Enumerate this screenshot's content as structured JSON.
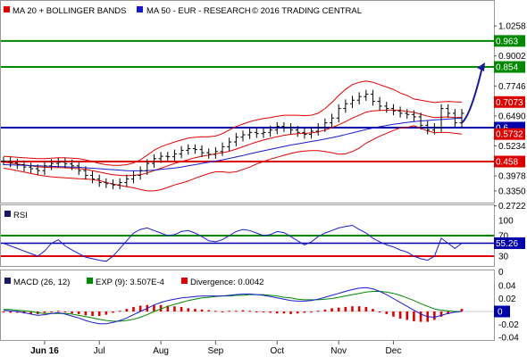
{
  "header": {
    "legend_bollinger": "MA 20 + BOLLINGER BANDS",
    "legend_ma50": "MA 50 - EUR - RESEARCH",
    "copyright": "© 2016 TRADING CENTRAL"
  },
  "rsi_panel": {
    "title": "RSI"
  },
  "macd_panel": {
    "macd_label": "MACD (26, 12)",
    "exp_label": "EXP (9): 3.507E-4",
    "divergence_label": "Divergence: 0.0042"
  },
  "colors": {
    "price_bar": "#000000",
    "bollinger": "#e00000",
    "ma50": "#1a1acc",
    "support_line": "#0000aa",
    "resistance_line": "#008800",
    "stop_line": "#dd0000",
    "rsi_line": "#1a1acc",
    "macd_line": "#1a1acc",
    "exp_line": "#008800",
    "divergence_bar": "#dd0000",
    "arrow": "#1a1a99"
  },
  "chart_data": [
    {
      "type": "candlestick",
      "name": "price",
      "x_categories": [
        "Jun 16",
        "Jul",
        "Aug",
        "Sep",
        "Oct",
        "Nov",
        "Dec"
      ],
      "y_ticks": [
        "1.0258",
        "0.9002",
        "0.7746",
        "0.6490",
        "0.5234",
        "0.3978",
        "0.3350",
        "0.2722"
      ],
      "ylim": [
        0.2722,
        1.0886
      ],
      "levels": [
        {
          "label": "0.963",
          "value": 0.963,
          "role": "resistance"
        },
        {
          "label": "0.854",
          "value": 0.854,
          "role": "resistance"
        },
        {
          "label": "0.6",
          "value": 0.6,
          "role": "pivot"
        },
        {
          "label": "0.458",
          "value": 0.458,
          "role": "support"
        }
      ],
      "badges": [
        {
          "label": "0.7073",
          "value": 0.7073,
          "role": "bollinger_upper"
        },
        {
          "label": "0.5732",
          "value": 0.5732,
          "role": "bollinger_lower"
        }
      ],
      "trend_arrow": {
        "from": 0.62,
        "to": 0.854
      },
      "close_series": [
        0.46,
        0.452,
        0.445,
        0.435,
        0.428,
        0.42,
        0.44,
        0.45,
        0.455,
        0.448,
        0.44,
        0.42,
        0.4,
        0.385,
        0.37,
        0.365,
        0.36,
        0.37,
        0.385,
        0.4,
        0.42,
        0.45,
        0.47,
        0.48,
        0.478,
        0.49,
        0.505,
        0.512,
        0.508,
        0.495,
        0.488,
        0.5,
        0.52,
        0.54,
        0.56,
        0.57,
        0.58,
        0.575,
        0.58,
        0.59,
        0.605,
        0.6,
        0.59,
        0.58,
        0.572,
        0.585,
        0.6,
        0.62,
        0.64,
        0.68,
        0.7,
        0.715,
        0.73,
        0.74,
        0.71,
        0.69,
        0.68,
        0.67,
        0.66,
        0.655,
        0.645,
        0.61,
        0.59,
        0.6,
        0.68,
        0.66,
        0.62,
        0.66
      ],
      "bollinger_mid": [
        0.455,
        0.452,
        0.448,
        0.444,
        0.44,
        0.436,
        0.434,
        0.433,
        0.433,
        0.432,
        0.43,
        0.428,
        0.425,
        0.42,
        0.414,
        0.408,
        0.403,
        0.4,
        0.399,
        0.4,
        0.403,
        0.41,
        0.42,
        0.43,
        0.44,
        0.45,
        0.458,
        0.466,
        0.474,
        0.48,
        0.485,
        0.49,
        0.495,
        0.501,
        0.51,
        0.52,
        0.53,
        0.54,
        0.548,
        0.555,
        0.562,
        0.568,
        0.572,
        0.575,
        0.576,
        0.578,
        0.582,
        0.59,
        0.6,
        0.612,
        0.625,
        0.64,
        0.652,
        0.665,
        0.67,
        0.672,
        0.673,
        0.674,
        0.672,
        0.668,
        0.664,
        0.656,
        0.648,
        0.642,
        0.644,
        0.645,
        0.642,
        0.643
      ],
      "bollinger_upper": [
        0.48,
        0.478,
        0.476,
        0.474,
        0.472,
        0.47,
        0.47,
        0.472,
        0.474,
        0.474,
        0.472,
        0.47,
        0.465,
        0.458,
        0.45,
        0.445,
        0.442,
        0.442,
        0.445,
        0.452,
        0.465,
        0.485,
        0.505,
        0.52,
        0.53,
        0.54,
        0.548,
        0.556,
        0.56,
        0.562,
        0.562,
        0.565,
        0.575,
        0.59,
        0.605,
        0.615,
        0.625,
        0.632,
        0.638,
        0.642,
        0.648,
        0.652,
        0.652,
        0.652,
        0.65,
        0.652,
        0.66,
        0.68,
        0.705,
        0.735,
        0.76,
        0.78,
        0.79,
        0.795,
        0.79,
        0.78,
        0.77,
        0.76,
        0.745,
        0.735,
        0.72,
        0.715,
        0.71,
        0.705,
        0.708,
        0.71,
        0.708,
        0.707
      ],
      "bollinger_lower": [
        0.43,
        0.426,
        0.42,
        0.414,
        0.408,
        0.402,
        0.398,
        0.394,
        0.392,
        0.39,
        0.388,
        0.386,
        0.385,
        0.382,
        0.378,
        0.371,
        0.364,
        0.358,
        0.353,
        0.348,
        0.341,
        0.335,
        0.335,
        0.34,
        0.35,
        0.36,
        0.368,
        0.376,
        0.388,
        0.398,
        0.408,
        0.415,
        0.415,
        0.412,
        0.415,
        0.425,
        0.435,
        0.448,
        0.458,
        0.468,
        0.476,
        0.484,
        0.492,
        0.498,
        0.502,
        0.504,
        0.504,
        0.5,
        0.495,
        0.489,
        0.49,
        0.5,
        0.514,
        0.535,
        0.55,
        0.564,
        0.576,
        0.588,
        0.599,
        0.601,
        0.608,
        0.597,
        0.586,
        0.579,
        0.58,
        0.58,
        0.576,
        0.573
      ],
      "ma50": [
        0.445,
        0.444,
        0.443,
        0.442,
        0.441,
        0.44,
        0.439,
        0.438,
        0.437,
        0.436,
        0.435,
        0.434,
        0.432,
        0.43,
        0.428,
        0.426,
        0.424,
        0.422,
        0.42,
        0.419,
        0.419,
        0.42,
        0.422,
        0.425,
        0.428,
        0.431,
        0.435,
        0.44,
        0.445,
        0.45,
        0.455,
        0.46,
        0.465,
        0.471,
        0.477,
        0.483,
        0.49,
        0.497,
        0.503,
        0.509,
        0.515,
        0.521,
        0.527,
        0.532,
        0.537,
        0.542,
        0.547,
        0.552,
        0.558,
        0.564,
        0.571,
        0.578,
        0.585,
        0.592,
        0.598,
        0.604,
        0.609,
        0.614,
        0.618,
        0.622,
        0.625,
        0.628,
        0.63,
        0.632,
        0.634,
        0.636,
        0.638,
        0.64
      ]
    },
    {
      "type": "line",
      "name": "RSI",
      "y_ticks": [
        "100",
        "70",
        "30",
        "0"
      ],
      "ylim": [
        0,
        100
      ],
      "current_label": "55.26",
      "levels": [
        70,
        30
      ],
      "values": [
        55,
        50,
        45,
        40,
        35,
        30,
        40,
        55,
        62,
        50,
        42,
        35,
        28,
        25,
        22,
        20,
        30,
        45,
        60,
        75,
        82,
        85,
        80,
        75,
        70,
        72,
        78,
        80,
        75,
        68,
        60,
        58,
        62,
        70,
        78,
        82,
        80,
        75,
        70,
        72,
        78,
        76,
        68,
        60,
        52,
        58,
        68,
        75,
        80,
        85,
        88,
        90,
        82,
        75,
        65,
        58,
        52,
        48,
        42,
        38,
        30,
        25,
        22,
        30,
        65,
        55,
        45,
        55
      ]
    },
    {
      "type": "bar+line",
      "name": "MACD",
      "y_ticks": [
        "0.04",
        "0.02",
        "0",
        "-0.02",
        "-0.04"
      ],
      "ylim": [
        -0.04,
        0.04
      ],
      "current_label": "0",
      "macd": [
        0.002,
        0.001,
        0.0,
        -0.002,
        -0.004,
        -0.006,
        -0.005,
        -0.003,
        -0.002,
        -0.004,
        -0.007,
        -0.01,
        -0.014,
        -0.017,
        -0.019,
        -0.019,
        -0.017,
        -0.014,
        -0.01,
        -0.005,
        0.0,
        0.005,
        0.01,
        0.014,
        0.017,
        0.019,
        0.021,
        0.022,
        0.023,
        0.024,
        0.024,
        0.024,
        0.024,
        0.025,
        0.026,
        0.027,
        0.027,
        0.026,
        0.025,
        0.023,
        0.021,
        0.019,
        0.017,
        0.016,
        0.016,
        0.017,
        0.019,
        0.022,
        0.025,
        0.028,
        0.031,
        0.034,
        0.036,
        0.037,
        0.035,
        0.031,
        0.026,
        0.02,
        0.014,
        0.008,
        0.002,
        -0.004,
        -0.008,
        -0.009,
        -0.006,
        -0.003,
        -0.001,
        0.0
      ],
      "signal": [
        0.003,
        0.003,
        0.002,
        0.001,
        0.0,
        -0.002,
        -0.003,
        -0.003,
        -0.003,
        -0.003,
        -0.004,
        -0.006,
        -0.008,
        -0.01,
        -0.012,
        -0.014,
        -0.015,
        -0.015,
        -0.014,
        -0.012,
        -0.009,
        -0.005,
        0.0,
        0.004,
        0.008,
        0.011,
        0.014,
        0.017,
        0.019,
        0.021,
        0.022,
        0.023,
        0.024,
        0.024,
        0.025,
        0.025,
        0.026,
        0.026,
        0.026,
        0.025,
        0.024,
        0.022,
        0.021,
        0.019,
        0.018,
        0.018,
        0.018,
        0.019,
        0.02,
        0.022,
        0.024,
        0.026,
        0.028,
        0.03,
        0.031,
        0.031,
        0.03,
        0.028,
        0.025,
        0.021,
        0.017,
        0.012,
        0.008,
        0.004,
        0.002,
        0.001,
        0.0,
        0.0
      ],
      "divergence": [
        -0.001,
        -0.002,
        -0.002,
        -0.003,
        -0.004,
        -0.004,
        -0.002,
        0.0,
        0.001,
        -0.001,
        -0.003,
        -0.004,
        -0.006,
        -0.007,
        -0.007,
        -0.005,
        -0.002,
        0.001,
        0.004,
        0.007,
        0.009,
        0.01,
        0.01,
        0.01,
        0.009,
        0.008,
        0.007,
        0.005,
        0.004,
        0.003,
        0.002,
        0.001,
        0.0,
        0.001,
        0.001,
        0.002,
        0.001,
        0.0,
        -0.001,
        -0.002,
        -0.003,
        -0.003,
        -0.004,
        -0.003,
        -0.002,
        -0.001,
        0.001,
        0.003,
        0.005,
        0.006,
        0.007,
        0.008,
        0.008,
        0.007,
        0.004,
        0.0,
        -0.004,
        -0.008,
        -0.011,
        -0.013,
        -0.015,
        -0.016,
        -0.016,
        -0.013,
        -0.008,
        -0.004,
        -0.001,
        0.004
      ]
    }
  ]
}
